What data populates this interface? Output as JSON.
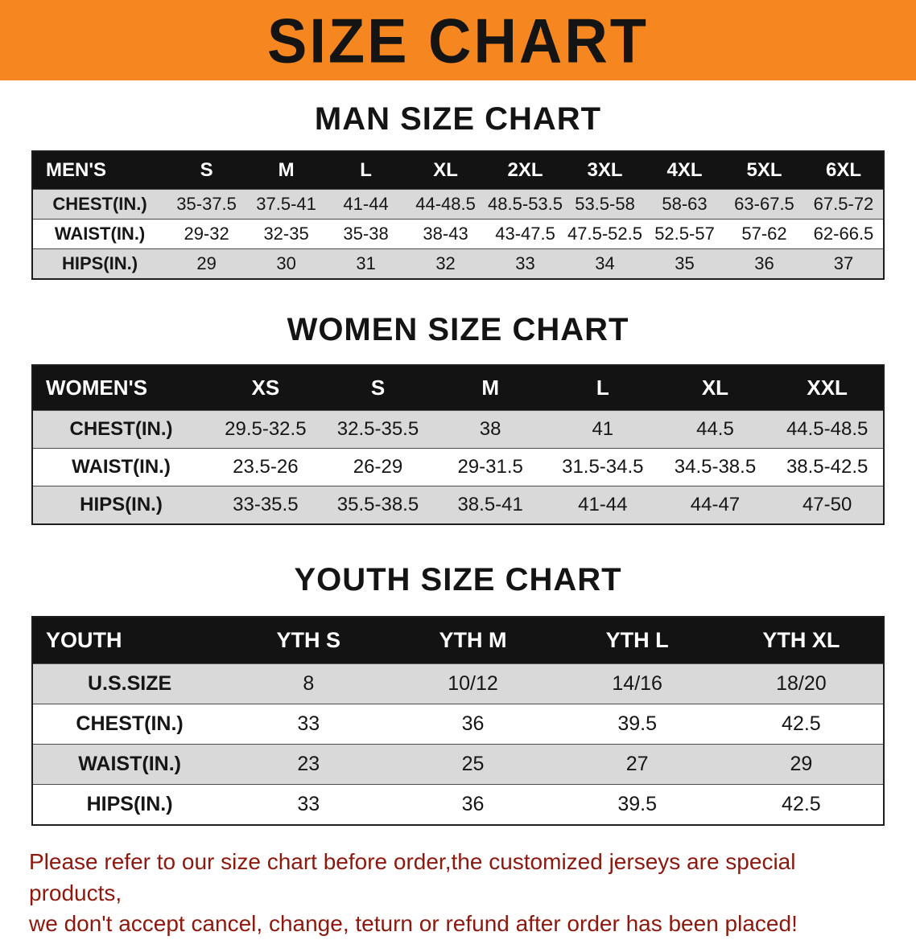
{
  "banner": {
    "title": "SIZE CHART",
    "bg_color": "#f6861f",
    "title_color": "#141414"
  },
  "sections": [
    {
      "heading": "MAN SIZE CHART",
      "table": {
        "label": "MEN'S",
        "columns": [
          "S",
          "M",
          "L",
          "XL",
          "2XL",
          "3XL",
          "4XL",
          "5XL",
          "6XL"
        ],
        "rows": [
          {
            "label": "CHEST(IN.)",
            "values": [
              "35-37.5",
              "37.5-41",
              "41-44",
              "44-48.5",
              "48.5-53.5",
              "53.5-58",
              "58-63",
              "63-67.5",
              "67.5-72"
            ]
          },
          {
            "label": "WAIST(IN.)",
            "values": [
              "29-32",
              "32-35",
              "35-38",
              "38-43",
              "43-47.5",
              "47.5-52.5",
              "52.5-57",
              "57-62",
              "62-66.5"
            ]
          },
          {
            "label": "HIPS(IN.)",
            "values": [
              "29",
              "30",
              "31",
              "32",
              "33",
              "34",
              "35",
              "36",
              "37"
            ]
          }
        ]
      }
    },
    {
      "heading": "WOMEN SIZE CHART",
      "table": {
        "label": "WOMEN'S",
        "columns": [
          "XS",
          "S",
          "M",
          "L",
          "XL",
          "XXL"
        ],
        "rows": [
          {
            "label": "CHEST(IN.)",
            "values": [
              "29.5-32.5",
              "32.5-35.5",
              "38",
              "41",
              "44.5",
              "44.5-48.5"
            ]
          },
          {
            "label": "WAIST(IN.)",
            "values": [
              "23.5-26",
              "26-29",
              "29-31.5",
              "31.5-34.5",
              "34.5-38.5",
              "38.5-42.5"
            ]
          },
          {
            "label": "HIPS(IN.)",
            "values": [
              "33-35.5",
              "35.5-38.5",
              "38.5-41",
              "41-44",
              "44-47",
              "47-50"
            ]
          }
        ]
      }
    },
    {
      "heading": "YOUTH SIZE CHART",
      "table": {
        "label": "YOUTH",
        "columns": [
          "YTH S",
          "YTH M",
          "YTH L",
          "YTH XL"
        ],
        "rows": [
          {
            "label": "U.S.SIZE",
            "values": [
              "8",
              "10/12",
              "14/16",
              "18/20"
            ]
          },
          {
            "label": "CHEST(IN.)",
            "values": [
              "33",
              "36",
              "39.5",
              "42.5"
            ]
          },
          {
            "label": "WAIST(IN.)",
            "values": [
              "23",
              "25",
              "27",
              "29"
            ]
          },
          {
            "label": "HIPS(IN.)",
            "values": [
              "33",
              "36",
              "39.5",
              "42.5"
            ]
          }
        ]
      }
    }
  ],
  "footer": {
    "line1": "Please refer to our size chart before order,the customized jerseys are special products,",
    "line2": "we don't accept cancel, change, teturn or refund after order has been placed!",
    "color": "#8e180d"
  }
}
